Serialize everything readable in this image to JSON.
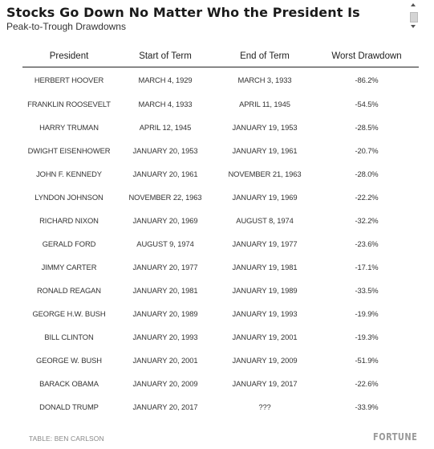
{
  "header": {
    "title": "Stocks Go Down No Matter Who the President Is",
    "subtitle": "Peak-to-Trough Drawdowns"
  },
  "table": {
    "columns": [
      "President",
      "Start of Term",
      "End of Term",
      "Worst Drawdown"
    ],
    "rows": [
      [
        "HERBERT HOOVER",
        "MARCH 4, 1929",
        "MARCH 3, 1933",
        "-86.2%"
      ],
      [
        "FRANKLIN ROOSEVELT",
        "MARCH 4, 1933",
        "APRIL 11, 1945",
        "-54.5%"
      ],
      [
        "HARRY TRUMAN",
        "APRIL 12, 1945",
        "JANUARY 19, 1953",
        "-28.5%"
      ],
      [
        "DWIGHT EISENHOWER",
        "JANUARY 20, 1953",
        "JANUARY 19, 1961",
        "-20.7%"
      ],
      [
        "JOHN F. KENNEDY",
        "JANUARY 20, 1961",
        "NOVEMBER 21, 1963",
        "-28.0%"
      ],
      [
        "LYNDON JOHNSON",
        "NOVEMBER 22, 1963",
        "JANUARY 19, 1969",
        "-22.2%"
      ],
      [
        "RICHARD NIXON",
        "JANUARY 20, 1969",
        "AUGUST 8, 1974",
        "-32.2%"
      ],
      [
        "GERALD FORD",
        "AUGUST 9, 1974",
        "JANUARY 19, 1977",
        "-23.6%"
      ],
      [
        "JIMMY CARTER",
        "JANUARY 20, 1977",
        "JANUARY 19, 1981",
        "-17.1%"
      ],
      [
        "RONALD REAGAN",
        "JANUARY 20, 1981",
        "JANUARY 19, 1989",
        "-33.5%"
      ],
      [
        "GEORGE H.W. BUSH",
        "JANUARY 20, 1989",
        "JANUARY 19, 1993",
        "-19.9%"
      ],
      [
        "BILL CLINTON",
        "JANUARY 20, 1993",
        "JANUARY 19, 2001",
        "-19.3%"
      ],
      [
        "GEORGE W. BUSH",
        "JANUARY 20, 2001",
        "JANUARY 19, 2009",
        "-51.9%"
      ],
      [
        "BARACK OBAMA",
        "JANUARY 20, 2009",
        "JANUARY 19, 2017",
        "-22.6%"
      ],
      [
        "DONALD TRUMP",
        "JANUARY 20, 2017",
        "???",
        "-33.9%"
      ]
    ]
  },
  "footer": {
    "source": "TABLE: BEN CARLSON",
    "logo": "FORTUNE"
  },
  "colors": {
    "text": "#222222",
    "muted": "#888888",
    "logo": "#9a9a9a",
    "rule": "#222222"
  }
}
